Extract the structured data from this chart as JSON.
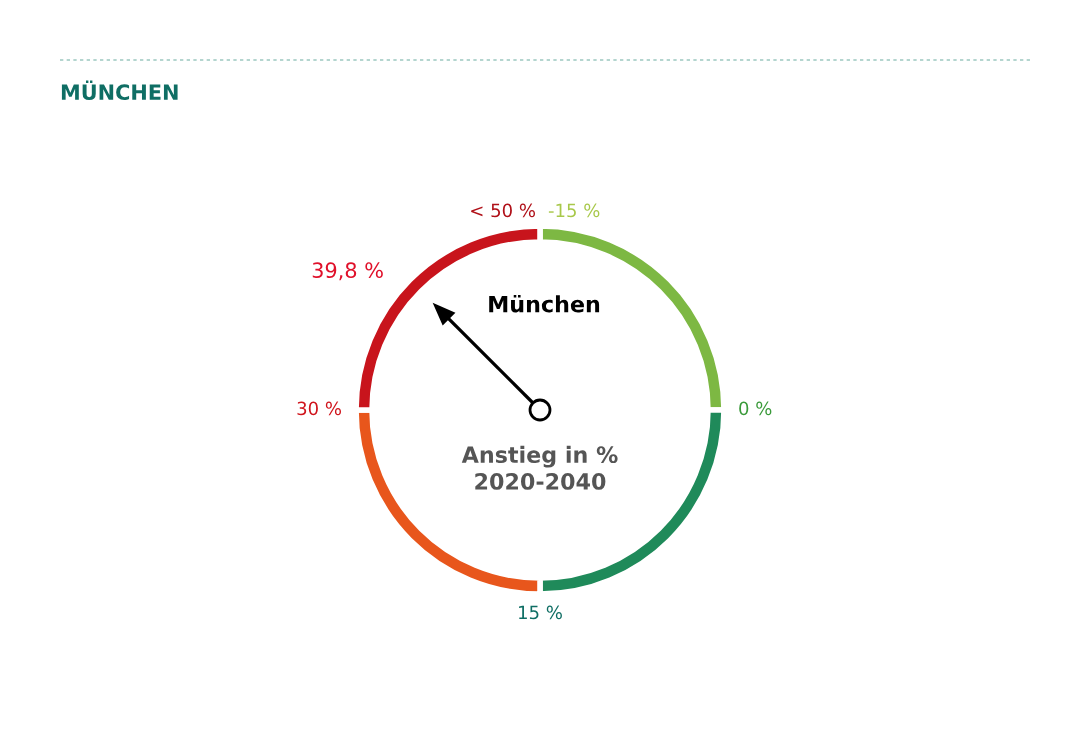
{
  "chart_data": {
    "type": "donut",
    "title": "MÜNCHEN",
    "categories": [
      "-15 %",
      "0 %",
      "15 %",
      "30 %"
    ],
    "values": [
      25,
      25,
      25,
      25
    ],
    "colors": [
      "#7db843",
      "#1f8a5a",
      "#e8561c",
      "#c8141c"
    ],
    "needle": "30 %",
    "annotations": [
      "< 50 %",
      "39,8 %",
      "München",
      "Anstieg in %\n2020-2040"
    ]
  }
}
